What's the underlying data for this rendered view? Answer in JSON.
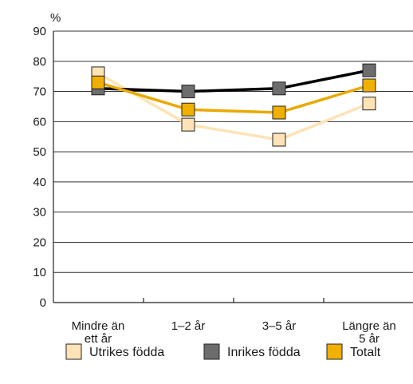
{
  "chart_data": {
    "type": "line",
    "unit_label": "%",
    "ylim": [
      0,
      90
    ],
    "yticks": [
      0,
      10,
      20,
      30,
      40,
      50,
      60,
      70,
      80,
      90
    ],
    "grid": true,
    "legend_position": "bottom",
    "categories": [
      [
        "Mindre än",
        "ett år"
      ],
      [
        "1–2 år"
      ],
      [
        "3–5 år"
      ],
      [
        "Längre än",
        "5 år"
      ]
    ],
    "series": [
      {
        "name": "Utrikes födda",
        "color": "#fde3b6",
        "values": [
          76,
          59,
          54,
          66
        ]
      },
      {
        "name": "Inrikes födda",
        "color": "#000000",
        "marker_color": "#6d6d6d",
        "values": [
          71,
          70,
          71,
          77
        ]
      },
      {
        "name": "Totalt",
        "color": "#e9a900",
        "marker_color": "#f0b000",
        "values": [
          73,
          64,
          63,
          72
        ]
      }
    ]
  }
}
